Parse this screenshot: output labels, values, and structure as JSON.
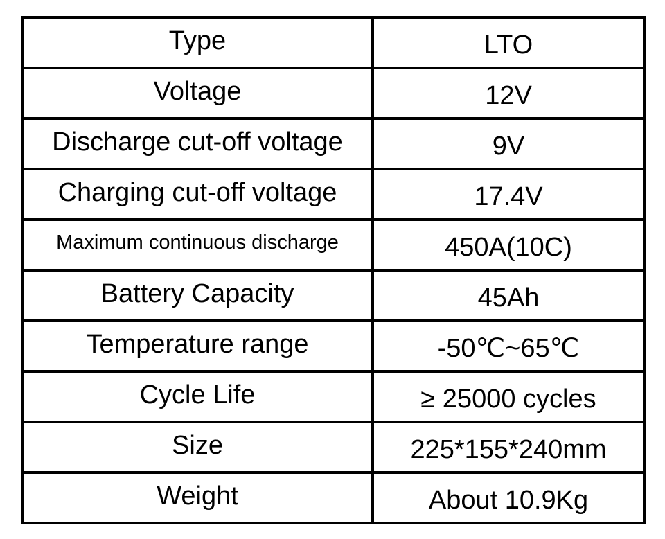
{
  "specs": [
    {
      "label": "Type",
      "value": "LTO"
    },
    {
      "label": "Voltage",
      "value": "12V"
    },
    {
      "label": "Discharge cut-off voltage",
      "value": "9V"
    },
    {
      "label": "Charging cut-off voltage",
      "value": "17.4V"
    },
    {
      "label": "Maximum continuous discharge",
      "value": "450A(10C)"
    },
    {
      "label": "Battery Capacity",
      "value": "45Ah"
    },
    {
      "label": "Temperature range",
      "value": "-50℃~65℃"
    },
    {
      "label": "Cycle Life",
      "value": "≥ 25000 cycles"
    },
    {
      "label": "Size",
      "value": "225*155*240mm"
    },
    {
      "label": "Weight",
      "value": "About 10.9Kg"
    }
  ]
}
